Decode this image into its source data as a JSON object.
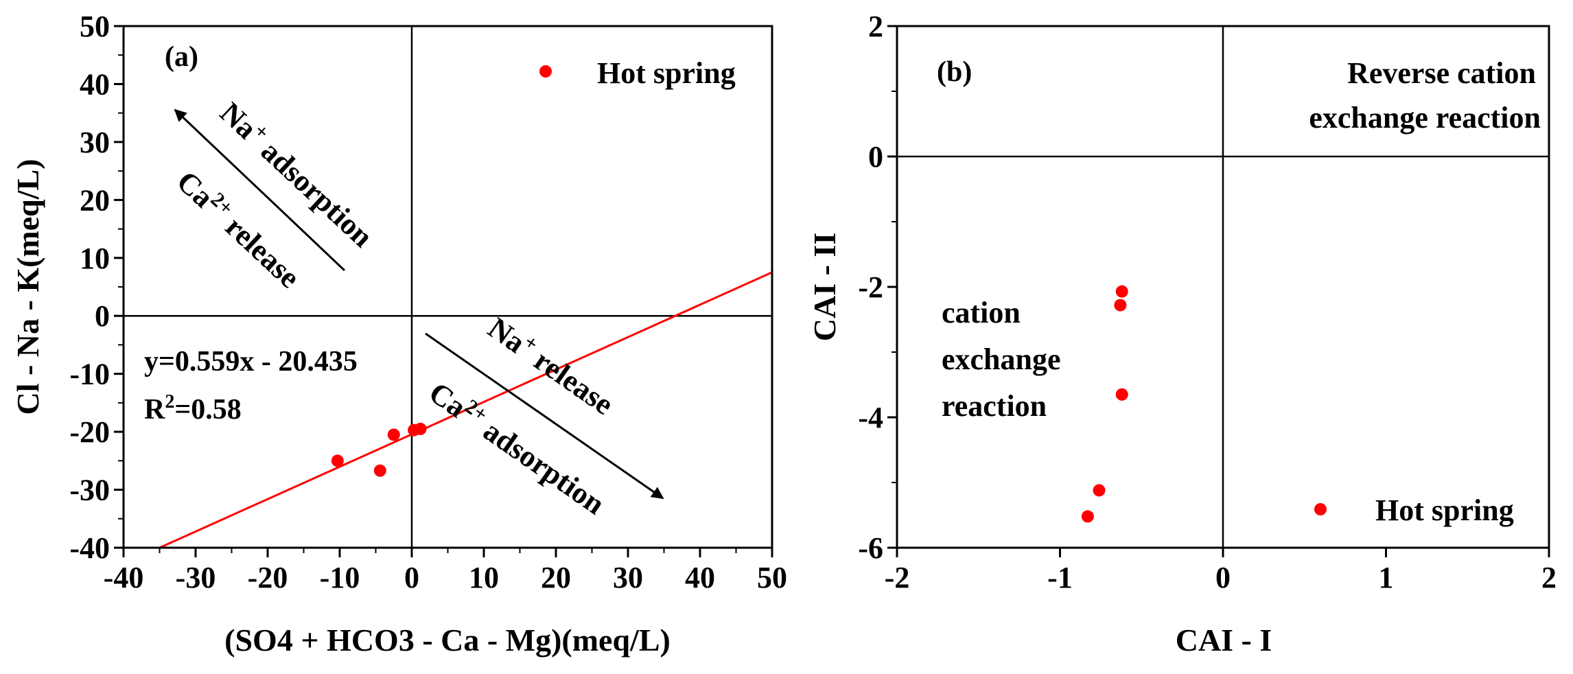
{
  "colors": {
    "marker": "#ff0000",
    "fit_line": "#ff0000",
    "axes": "#000000"
  },
  "chart_data": [
    {
      "type": "scatter",
      "panel_label": "(a)",
      "xlabel": "(SO4 + HCO3 - Ca - Mg)(meq/L)",
      "ylabel": "Cl - Na - K(meq/L)",
      "xlim": [
        -40,
        50
      ],
      "ylim": [
        -40,
        50
      ],
      "xticks": [
        "-40",
        "-30",
        "-20",
        "-10",
        "0",
        "10",
        "20",
        "30",
        "40",
        "50"
      ],
      "yticks": [
        "-40",
        "-30",
        "-20",
        "-10",
        "0",
        "10",
        "20",
        "30",
        "40",
        "50"
      ],
      "xtick_values": [
        -40,
        -30,
        -20,
        -10,
        0,
        10,
        20,
        30,
        40,
        50
      ],
      "ytick_values": [
        -40,
        -30,
        -20,
        -10,
        0,
        10,
        20,
        30,
        40,
        50
      ],
      "legend": {
        "label": "Hot spring",
        "position": "top-right"
      },
      "series": [
        {
          "name": "Hot spring",
          "x": [
            -10.3,
            -4.4,
            -2.5,
            0.3,
            1.2
          ],
          "y": [
            -25.0,
            -26.7,
            -20.5,
            -19.7,
            -19.5
          ]
        }
      ],
      "fit": {
        "slope": 0.559,
        "intercept": -20.435,
        "x_range": [
          -35,
          50
        ],
        "equation": "y=0.559x - 20.435",
        "r2_prefix": "R",
        "r2_sup": "2",
        "r2_suffix": "=0.58"
      },
      "reference_lines": {
        "x": 0,
        "y": 0
      },
      "annotations": {
        "upper_na": "Na",
        "upper_na_sup": "+",
        "upper_na_text": " adsorption",
        "upper_ca": "Ca",
        "upper_ca_sup": "2+",
        "upper_ca_text": " release",
        "lower_na": "Na",
        "lower_na_sup": "+",
        "lower_na_text": " release",
        "lower_ca": "Ca",
        "lower_ca_sup": "2+",
        "lower_ca_text": " adsorption"
      }
    },
    {
      "type": "scatter",
      "panel_label": "(b)",
      "xlabel": "CAI - I",
      "ylabel": "CAI - II",
      "xlim": [
        -2,
        2
      ],
      "ylim": [
        -6,
        2
      ],
      "xticks": [
        "-2",
        "-1",
        "0",
        "1",
        "2"
      ],
      "yticks": [
        "-6",
        "-4",
        "-2",
        "0",
        "2"
      ],
      "xtick_values": [
        -2,
        -1,
        0,
        1,
        2
      ],
      "ytick_values": [
        -6,
        -4,
        -2,
        0,
        2
      ],
      "legend": {
        "label": "Hot spring",
        "position": "bottom-right"
      },
      "series": [
        {
          "name": "Hot spring",
          "x": [
            -0.62,
            -0.63,
            -0.62,
            -0.76,
            -0.83
          ],
          "y": [
            -2.07,
            -2.28,
            -3.65,
            -5.12,
            -5.52
          ]
        }
      ],
      "reference_lines": {
        "x": 0,
        "y": 0
      },
      "annotations": {
        "reverse_line1": "Reverse cation",
        "reverse_line2": "exchange reaction",
        "cation_line1": "cation",
        "cation_line2": "exchange",
        "cation_line3": "reaction"
      }
    }
  ]
}
